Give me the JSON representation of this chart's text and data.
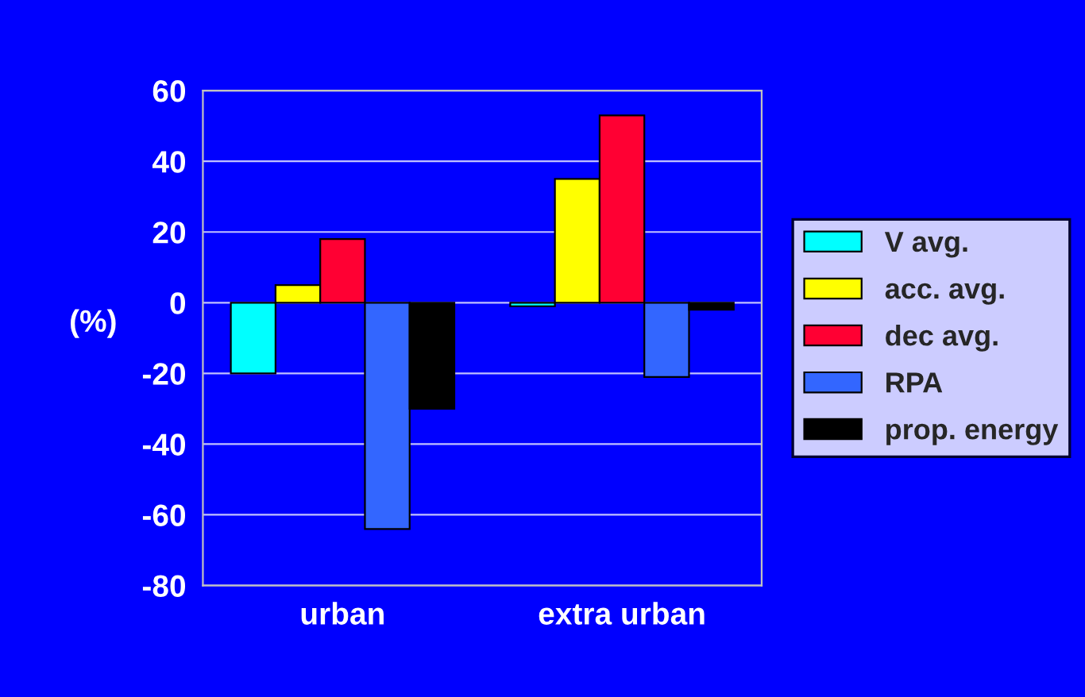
{
  "chart_data": {
    "type": "bar",
    "ylabel": "(%)",
    "categories": [
      "urban",
      "extra urban"
    ],
    "series": [
      {
        "name": "V avg.",
        "color": "#00ffff",
        "values": [
          -20,
          -1
        ]
      },
      {
        "name": "acc. avg.",
        "color": "#ffff00",
        "values": [
          5,
          35
        ]
      },
      {
        "name": "dec avg.",
        "color": "#ff0033",
        "values": [
          18,
          53
        ]
      },
      {
        "name": "RPA",
        "color": "#3366ff",
        "values": [
          -64,
          -21
        ]
      },
      {
        "name": "prop. energy",
        "color": "#000000",
        "values": [
          -30,
          -2
        ]
      }
    ],
    "ylim": [
      -80,
      60
    ],
    "yticks": [
      -80,
      -60,
      -40,
      -20,
      0,
      20,
      40,
      60
    ],
    "grid": "y",
    "legend": "right"
  }
}
